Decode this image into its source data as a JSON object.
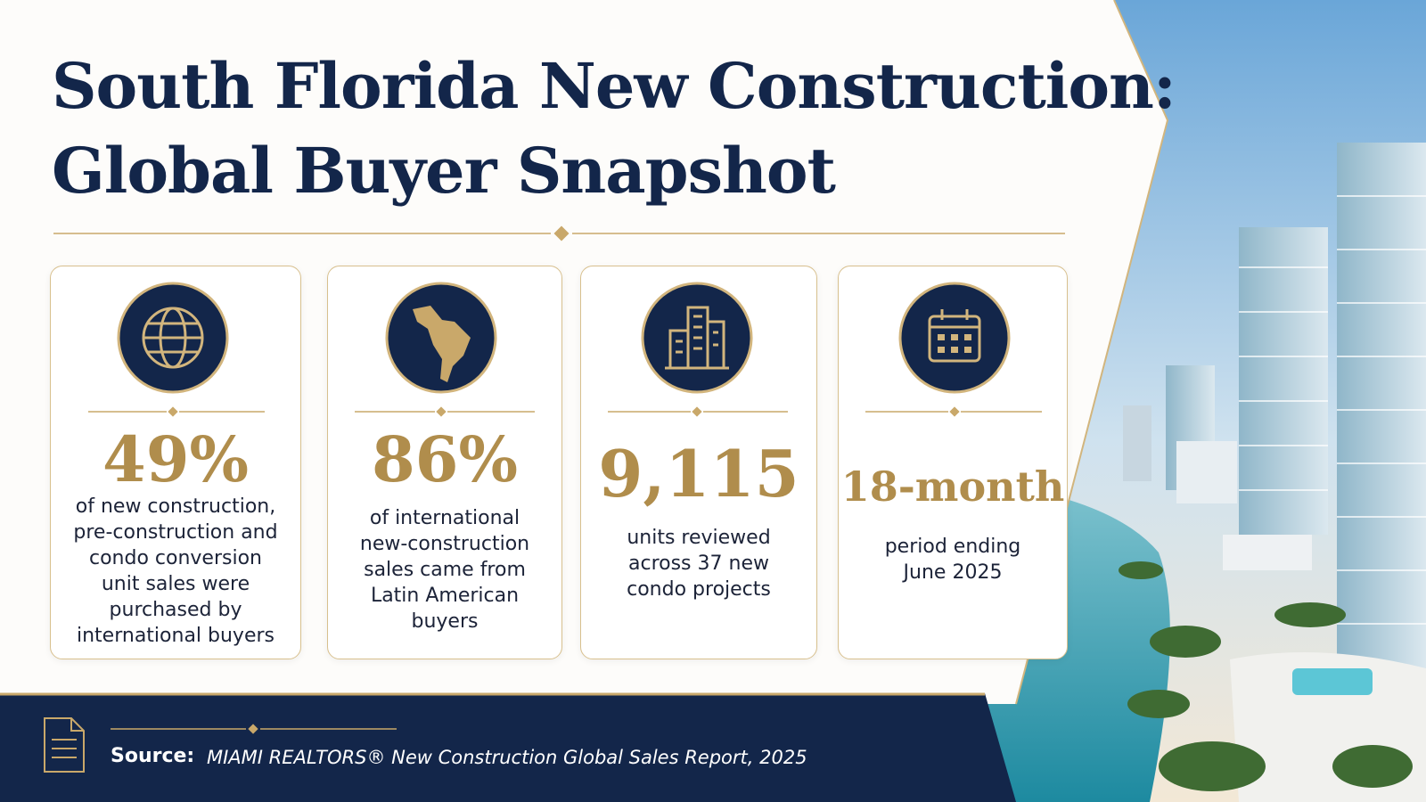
{
  "header": {
    "title_lines": [
      "South Florida New Construction:",
      "Global Buyer Snapshot"
    ]
  },
  "cards": [
    {
      "stat": "49%",
      "description": "of new construction, pre-construction and condo conversion unit sales were purchased by international buyers"
    },
    {
      "stat": "86%",
      "description": "of international new-construction sales came from Latin American buyers"
    },
    {
      "stat": "9,115",
      "description": "units reviewed across 37 new condo projects"
    },
    {
      "stat": "18-month",
      "description": "period ending June 2025"
    }
  ],
  "footer": {
    "label": "Source:",
    "text": "MIAMI REALTORS® New Construction Global Sales Report, 2025"
  }
}
